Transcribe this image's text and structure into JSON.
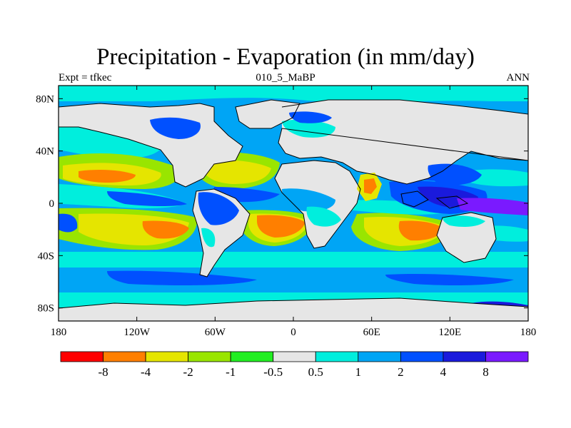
{
  "title": "Precipitation - Evaporation (in mm/day)",
  "subtitle_left": "Expt = tfkec",
  "subtitle_center": "010_5_MaBP",
  "subtitle_right": "ANN",
  "x_ticks": [
    {
      "lon": -180,
      "label": "180"
    },
    {
      "lon": -120,
      "label": "120W"
    },
    {
      "lon": -60,
      "label": "60W"
    },
    {
      "lon": 0,
      "label": "0"
    },
    {
      "lon": 60,
      "label": "60E"
    },
    {
      "lon": 120,
      "label": "120E"
    },
    {
      "lon": 180,
      "label": "180"
    }
  ],
  "y_ticks": [
    {
      "lat": 80,
      "label": "80N"
    },
    {
      "lat": 40,
      "label": "40N"
    },
    {
      "lat": 0,
      "label": "0"
    },
    {
      "lat": -40,
      "label": "40S"
    },
    {
      "lat": -80,
      "label": "80S"
    }
  ],
  "colorbar": {
    "colors": [
      "#ff0000",
      "#ff7f00",
      "#e5e500",
      "#99e500",
      "#22ee22",
      "#e6e6e6",
      "#00eedd",
      "#00a5f5",
      "#0050ff",
      "#1a1adc",
      "#7a1aff"
    ],
    "labels": [
      "-8",
      "-4",
      "-2",
      "-1",
      "-0.5",
      "0.5",
      "1",
      "2",
      "4",
      "8"
    ]
  },
  "colors": {
    "land_neutral": "#e6e6e6",
    "ocean_base": "#00a5f5",
    "coast": "#000000"
  }
}
